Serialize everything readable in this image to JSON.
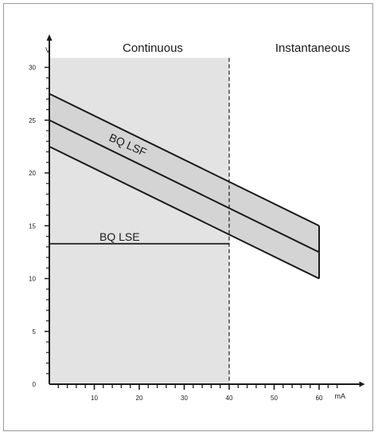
{
  "chart_data": {
    "type": "line",
    "title": "",
    "xlabel": "mA",
    "ylabel": "V",
    "xlim": [
      0,
      70
    ],
    "ylim": [
      0,
      32
    ],
    "x_ticks": [
      10,
      20,
      30,
      40,
      50,
      60
    ],
    "y_ticks": [
      0,
      5,
      10,
      15,
      20,
      25,
      30
    ],
    "regions": [
      {
        "label": "Continuous",
        "x_range": [
          0,
          40
        ],
        "fill": "#e3e3e3"
      },
      {
        "label": "Instantaneous",
        "x_range": [
          40,
          70
        ],
        "fill": "#ffffff"
      }
    ],
    "band": {
      "x": [
        0,
        60
      ],
      "upper": [
        27.5,
        15.0
      ],
      "lower": [
        22.5,
        10.0
      ],
      "fill": "#d4d4d4"
    },
    "series": [
      {
        "name": "BQ LSF",
        "x": [
          0,
          60
        ],
        "y": [
          25.0,
          12.5
        ]
      },
      {
        "name": "BQ LSE",
        "x": [
          0,
          40
        ],
        "y": [
          13.3,
          13.3
        ]
      }
    ],
    "boundary_x": 40,
    "grid": false
  },
  "colors": {
    "line": "#1a1a1a",
    "continuous_fill": "#e3e3e3",
    "band_fill": "#d4d4d4"
  }
}
